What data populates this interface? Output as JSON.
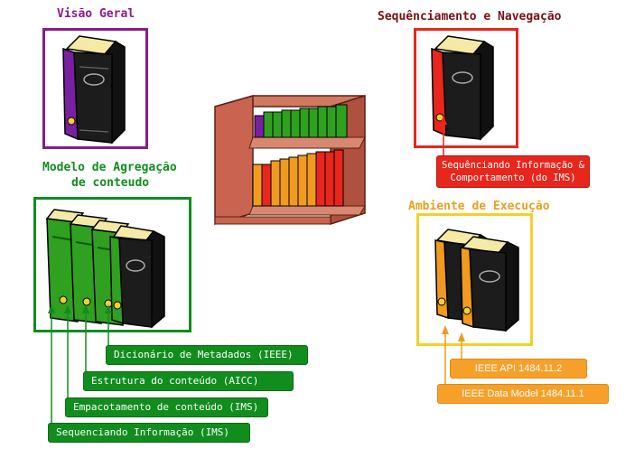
{
  "sections": {
    "visao_geral": {
      "title": "Visão Geral",
      "color": "#8b1a8b"
    },
    "sequenciamento": {
      "title": "Sequênciamento e Navegação",
      "color": "#7a1010",
      "frame_color": "#e8261c",
      "tag": "Sequênciando Informação & Comportamento (do IMS)"
    },
    "agregacao": {
      "title_line1": "Modelo de Agregação",
      "title_line2": "de conteudo",
      "color": "#118d1e",
      "tags": [
        "Dicionário de Metadados (IEEE)",
        "Estrutura do conteúdo (AICC)",
        "Empacotamento de conteúdo (IMS)",
        "Sequenciando Informação (IMS)"
      ]
    },
    "ambiente": {
      "title": "Ambiente de Execução",
      "color": "#e8a020",
      "frame_color": "#f2d12a",
      "tags": [
        "IEEE API 1484.11.2",
        "IEEE Data Model 1484.11.1"
      ]
    }
  },
  "colors": {
    "purple_book": "#7a1fa0",
    "red_book": "#e8261c",
    "green_book": "#2fa020",
    "orange_book": "#f09a20",
    "dark_book": "#1a1a1a",
    "shelf_wood": "#c86450"
  }
}
